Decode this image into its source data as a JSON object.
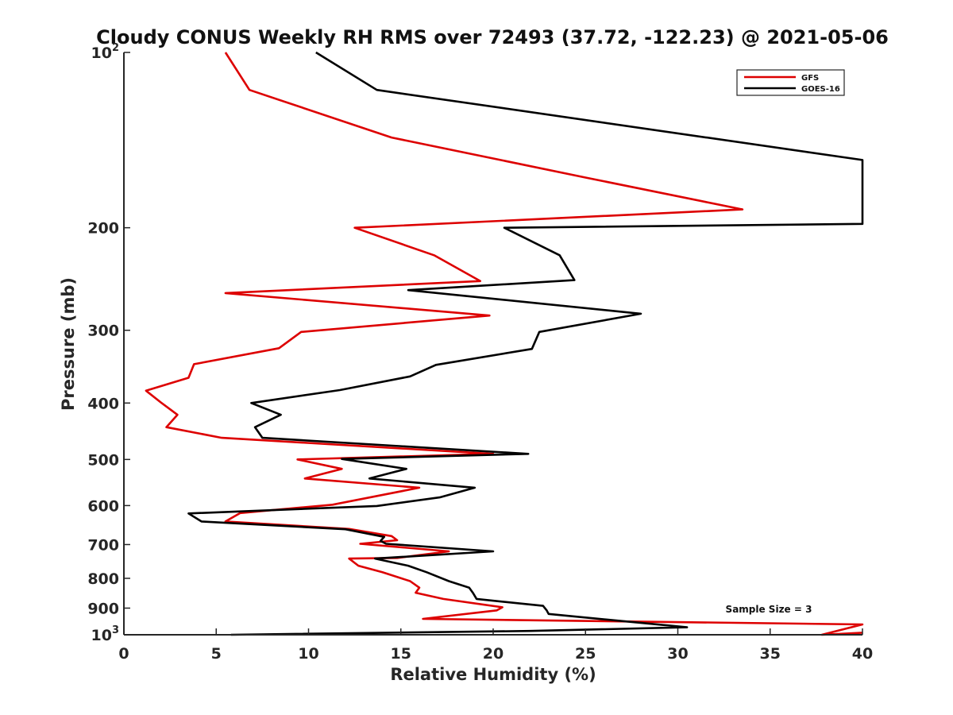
{
  "chart_data": {
    "type": "line",
    "title": "Cloudy CONUS Weekly RH RMS over 72493 (37.72, -122.23) @ 2021-05-06",
    "xlabel": "Relative Humidity (%)",
    "ylabel": "Pressure (mb)",
    "xlim": [
      0,
      40
    ],
    "ylim": [
      100,
      1000
    ],
    "y_scale": "log",
    "y_reversed": true,
    "grid": false,
    "legend_position": "top-right",
    "x_ticks": [
      "0",
      "5",
      "10",
      "15",
      "20",
      "25",
      "30",
      "35",
      "40"
    ],
    "y_ticks": [
      {
        "value": 100,
        "base": "10",
        "exp": "2"
      },
      {
        "value": 200,
        "label": "200"
      },
      {
        "value": 300,
        "label": "300"
      },
      {
        "value": 400,
        "label": "400"
      },
      {
        "value": 500,
        "label": "500"
      },
      {
        "value": 600,
        "label": "600"
      },
      {
        "value": 700,
        "label": "700"
      },
      {
        "value": 800,
        "label": "800"
      },
      {
        "value": 900,
        "label": "900"
      },
      {
        "value": 1000,
        "base": "10",
        "exp": "3"
      }
    ],
    "annotation": "Sample Size = 3",
    "series": [
      {
        "name": "GFS",
        "color": "#dd0000",
        "points": [
          [
            5.5,
            100
          ],
          [
            6.8,
            116
          ],
          [
            14.5,
            140
          ],
          [
            25,
            164
          ],
          [
            33.5,
            186
          ],
          [
            12.5,
            200
          ],
          [
            16.8,
            223
          ],
          [
            19.3,
            247
          ],
          [
            5.5,
            259
          ],
          [
            19.8,
            283
          ],
          [
            9.6,
            302
          ],
          [
            8.4,
            322
          ],
          [
            3.8,
            343
          ],
          [
            3.5,
            362
          ],
          [
            1.2,
            381
          ],
          [
            2,
            399
          ],
          [
            2.9,
            419
          ],
          [
            2.3,
            440
          ],
          [
            5.3,
            459
          ],
          [
            20,
            489
          ],
          [
            9.4,
            500
          ],
          [
            11.8,
            519
          ],
          [
            9.8,
            539
          ],
          [
            16,
            559
          ],
          [
            11.3,
            598
          ],
          [
            6.3,
            618
          ],
          [
            5.5,
            639
          ],
          [
            12.2,
            658
          ],
          [
            14.5,
            677
          ],
          [
            14.8,
            688
          ],
          [
            12.8,
            698
          ],
          [
            17.6,
            719
          ],
          [
            14.8,
            738
          ],
          [
            12.2,
            740
          ],
          [
            12.7,
            761
          ],
          [
            14,
            781
          ],
          [
            15.5,
            809
          ],
          [
            16,
            830
          ],
          [
            15.8,
            847
          ],
          [
            17.3,
            868
          ],
          [
            20.5,
            897
          ],
          [
            20.2,
            908
          ],
          [
            16.2,
            939
          ],
          [
            40,
            960
          ],
          [
            37.8,
            1000
          ],
          [
            40,
            992
          ]
        ]
      },
      {
        "name": "GOES-16",
        "color": "#000000",
        "points": [
          [
            10.4,
            100
          ],
          [
            13.7,
            116
          ],
          [
            40,
            153
          ],
          [
            40,
            197
          ],
          [
            20.6,
            200
          ],
          [
            23.6,
            223
          ],
          [
            24.4,
            246
          ],
          [
            15.4,
            256
          ],
          [
            28,
            281
          ],
          [
            22.5,
            302
          ],
          [
            22.1,
            323
          ],
          [
            16.9,
            344
          ],
          [
            15.5,
            360
          ],
          [
            11.7,
            380
          ],
          [
            6.9,
            400
          ],
          [
            8.5,
            419
          ],
          [
            7.1,
            440
          ],
          [
            7.5,
            459
          ],
          [
            21.9,
            489
          ],
          [
            11.8,
            499
          ],
          [
            15.3,
            519
          ],
          [
            13.3,
            539
          ],
          [
            19,
            559
          ],
          [
            17.1,
            581
          ],
          [
            13.7,
            601
          ],
          [
            3.5,
            619
          ],
          [
            4.2,
            639
          ],
          [
            12,
            659
          ],
          [
            14.1,
            679
          ],
          [
            13.9,
            690
          ],
          [
            14.2,
            698
          ],
          [
            20,
            719
          ],
          [
            13.6,
            740
          ],
          [
            15.4,
            761
          ],
          [
            16.4,
            781
          ],
          [
            17.6,
            809
          ],
          [
            18.7,
            830
          ],
          [
            18.9,
            847
          ],
          [
            19.1,
            868
          ],
          [
            22.7,
            892
          ],
          [
            22.9,
            908
          ],
          [
            23,
            921
          ],
          [
            30.5,
            971
          ],
          [
            22,
            985
          ],
          [
            5.8,
            1000
          ]
        ]
      }
    ]
  }
}
